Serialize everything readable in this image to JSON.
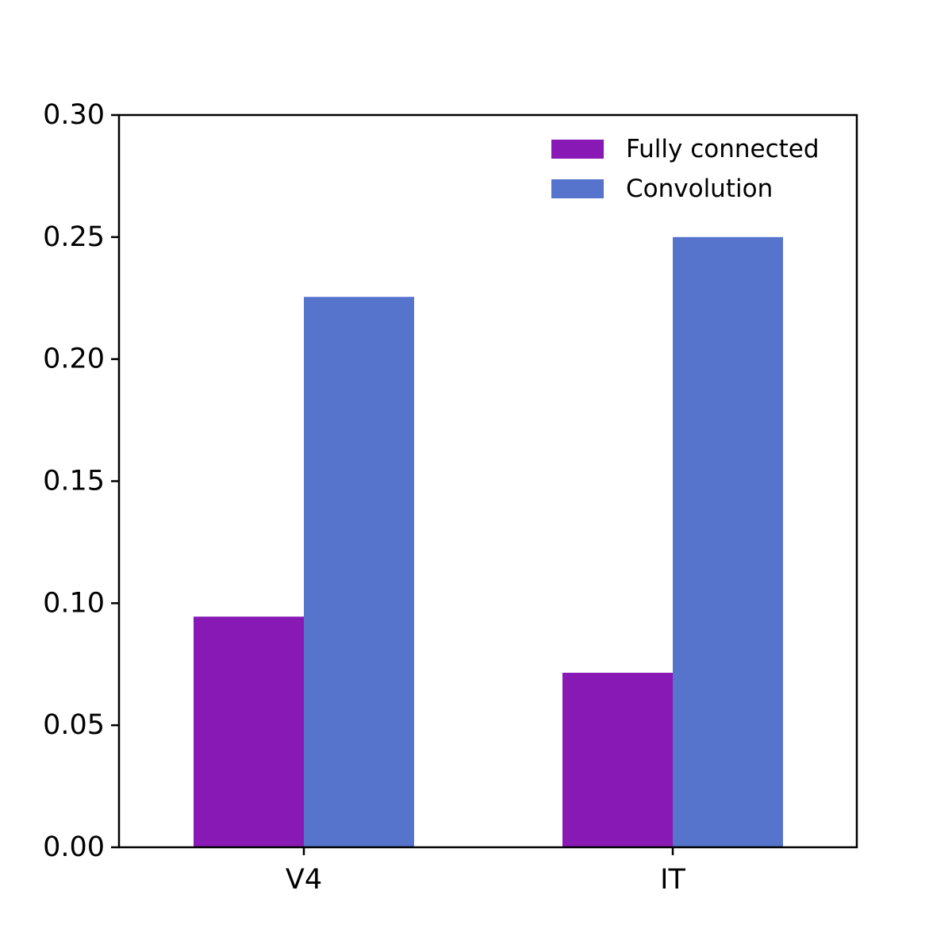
{
  "chart_data": {
    "type": "bar",
    "categories": [
      "V4",
      "IT"
    ],
    "series": [
      {
        "name": "Fully connected",
        "values": [
          0.0945,
          0.0715
        ],
        "color": "#8819b5"
      },
      {
        "name": "Convolution",
        "values": [
          0.2255,
          0.25
        ],
        "color": "#5674cc"
      }
    ],
    "ylim": [
      0,
      0.3
    ],
    "yticks": [
      "0.00",
      "0.05",
      "0.10",
      "0.15",
      "0.20",
      "0.25",
      "0.30"
    ],
    "title": "",
    "xlabel": "",
    "ylabel": "",
    "grid": false,
    "legend_position": "top-right"
  }
}
